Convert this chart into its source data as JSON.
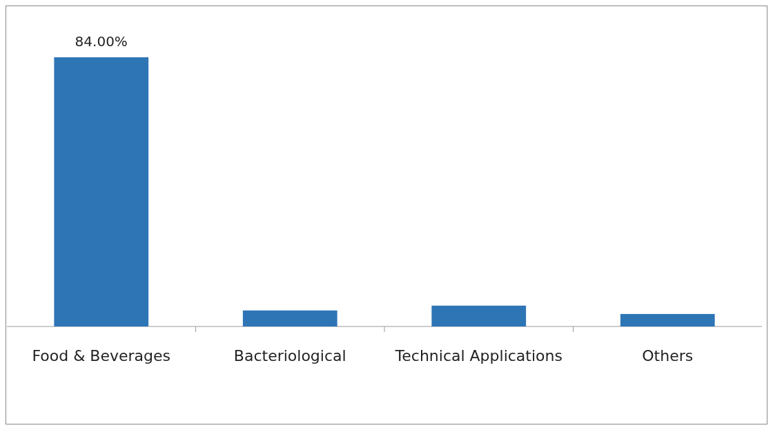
{
  "chart_data": {
    "type": "bar",
    "categories": [
      "Food & Beverages",
      "Bacteriological",
      "Technical Applications",
      "Others"
    ],
    "values": [
      84,
      5.0,
      6.5,
      3.9
    ],
    "color": "#2e75b6",
    "value_labels": [
      "84.00%",
      null,
      null,
      null
    ]
  }
}
